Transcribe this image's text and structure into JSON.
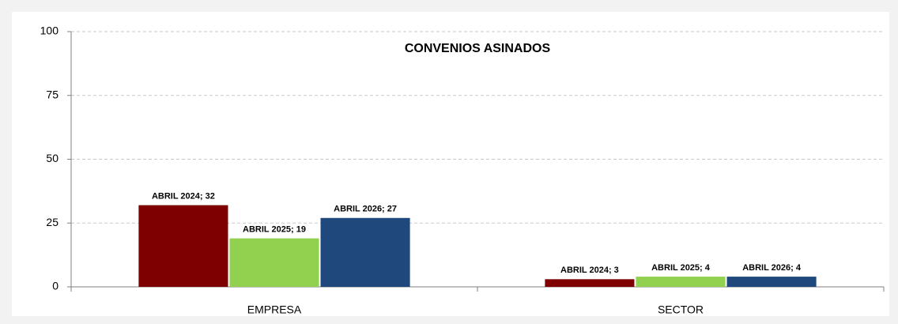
{
  "chart_data": {
    "type": "bar",
    "title": "CONVENIOS ASINADOS",
    "categories": [
      "EMPRESA",
      "SECTOR"
    ],
    "series": [
      {
        "color": "#7f0000",
        "values": [
          32,
          3
        ],
        "value_labels": [
          "ABRIL 2024; 32",
          "ABRIL 2024; 3"
        ]
      },
      {
        "color": "#92d050",
        "values": [
          19,
          4
        ],
        "value_labels": [
          "ABRIL 2025; 19",
          "ABRIL 2025; 4"
        ]
      },
      {
        "color": "#1f497d",
        "values": [
          27,
          4
        ],
        "value_labels": [
          "ABRIL 2026; 27",
          "ABRIL 2026; 4"
        ]
      }
    ],
    "ylim": [
      0,
      100
    ],
    "yticks": [
      0,
      25,
      50,
      75,
      100
    ],
    "grid": true
  }
}
